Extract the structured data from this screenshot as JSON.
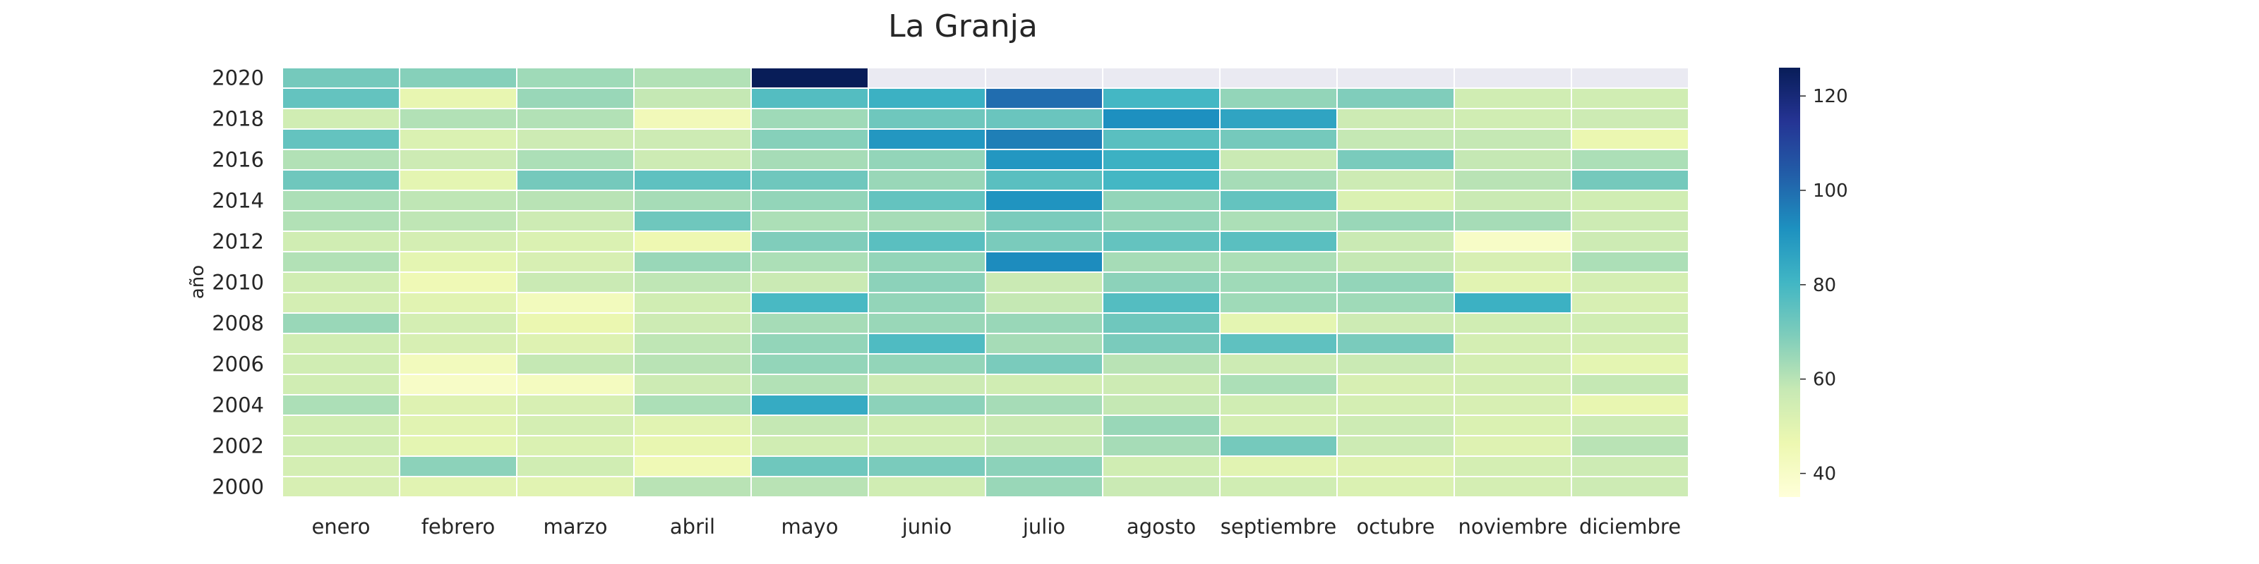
{
  "chart_data": {
    "type": "heatmap",
    "title": "La Granja",
    "xlabel": "",
    "ylabel": "año",
    "columns": [
      "enero",
      "febrero",
      "marzo",
      "abril",
      "mayo",
      "junio",
      "julio",
      "agosto",
      "septiembre",
      "octubre",
      "noviembre",
      "diciembre"
    ],
    "rows": [
      2020,
      2019,
      2018,
      2017,
      2016,
      2015,
      2014,
      2013,
      2012,
      2011,
      2010,
      2009,
      2008,
      2007,
      2006,
      2005,
      2004,
      2003,
      2002,
      2001,
      2000
    ],
    "y_tick_labels": [
      "2020",
      "2018",
      "2016",
      "2014",
      "2012",
      "2010",
      "2008",
      "2006",
      "2004",
      "2002",
      "2000"
    ],
    "values": [
      [
        71,
        68,
        64,
        61,
        126,
        null,
        null,
        null,
        null,
        null,
        null,
        null
      ],
      [
        74,
        48,
        65,
        58,
        77,
        82,
        100,
        80,
        66,
        69,
        55,
        55
      ],
      [
        55,
        61,
        61,
        44,
        64,
        72,
        73,
        92,
        86,
        56,
        55,
        56
      ],
      [
        74,
        52,
        56,
        56,
        68,
        90,
        96,
        76,
        71,
        58,
        58,
        47
      ],
      [
        61,
        56,
        62,
        56,
        63,
        66,
        90,
        82,
        57,
        70,
        58,
        62
      ],
      [
        72,
        49,
        71,
        75,
        72,
        65,
        76,
        80,
        63,
        56,
        60,
        71
      ],
      [
        62,
        59,
        60,
        63,
        66,
        74,
        91,
        66,
        74,
        52,
        57,
        55
      ],
      [
        61,
        59,
        56,
        72,
        62,
        63,
        70,
        66,
        62,
        65,
        63,
        56
      ],
      [
        55,
        54,
        52,
        46,
        69,
        76,
        70,
        74,
        76,
        57,
        40,
        56
      ],
      [
        61,
        49,
        53,
        65,
        62,
        66,
        93,
        63,
        62,
        58,
        53,
        62
      ],
      [
        55,
        45,
        57,
        59,
        57,
        67,
        57,
        67,
        64,
        66,
        50,
        54
      ],
      [
        54,
        50,
        43,
        55,
        79,
        66,
        58,
        77,
        64,
        64,
        82,
        53
      ],
      [
        65,
        54,
        47,
        56,
        63,
        65,
        65,
        72,
        49,
        56,
        55,
        55
      ],
      [
        55,
        53,
        51,
        59,
        66,
        78,
        63,
        70,
        75,
        70,
        54,
        54
      ],
      [
        55,
        43,
        58,
        60,
        66,
        66,
        70,
        60,
        56,
        57,
        54,
        49
      ],
      [
        55,
        40,
        42,
        56,
        61,
        56,
        55,
        56,
        62,
        53,
        54,
        58
      ],
      [
        62,
        51,
        53,
        62,
        84,
        67,
        63,
        58,
        55,
        54,
        53,
        48
      ],
      [
        55,
        50,
        54,
        50,
        58,
        55,
        57,
        65,
        54,
        56,
        52,
        56
      ],
      [
        55,
        49,
        52,
        48,
        55,
        55,
        58,
        63,
        71,
        56,
        51,
        60
      ],
      [
        54,
        67,
        55,
        45,
        72,
        70,
        67,
        55,
        50,
        51,
        54,
        56
      ],
      [
        53,
        50,
        50,
        60,
        60,
        55,
        65,
        57,
        55,
        52,
        54,
        56
      ]
    ],
    "colorbar": {
      "min": 35,
      "max": 126,
      "ticks": [
        40,
        60,
        80,
        100,
        120
      ],
      "colormap": "YlGnBu"
    },
    "missing_color": "#eaeaf2",
    "grid": false,
    "legend": "colorbar-right"
  }
}
